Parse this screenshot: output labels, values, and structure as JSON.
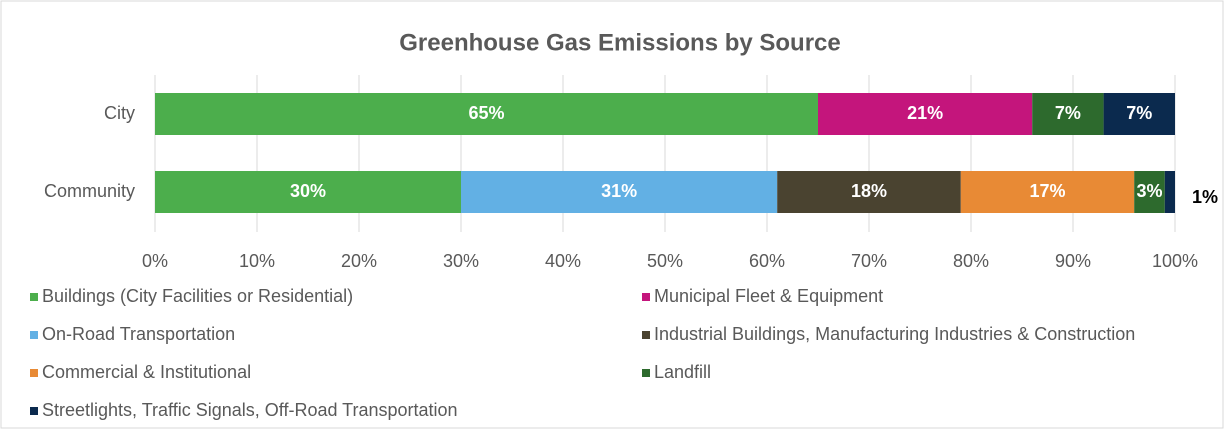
{
  "chart_data": {
    "type": "stacked-bar-horizontal",
    "title": "Greenhouse Gas Emissions by Source",
    "categories": [
      "City",
      "Community"
    ],
    "series": [
      {
        "name": "Buildings (City Facilities or Residential)",
        "color": "#4cae4c",
        "values": [
          65,
          30
        ],
        "value_labels": [
          "65%",
          "30%"
        ]
      },
      {
        "name": "Municipal Fleet & Equipment",
        "color": "#c4157c",
        "values": [
          21,
          null
        ],
        "value_labels": [
          "21%",
          null
        ]
      },
      {
        "name": "On-Road Transportation",
        "color": "#62b0e4",
        "values": [
          null,
          31
        ],
        "value_labels": [
          null,
          "31%"
        ]
      },
      {
        "name": "Industrial Buildings, Manufacturing Industries & Construction",
        "color": "#4a4330",
        "values": [
          null,
          18
        ],
        "value_labels": [
          null,
          "18%"
        ]
      },
      {
        "name": "Commercial & Institutional",
        "color": "#e88a35",
        "values": [
          null,
          17
        ],
        "value_labels": [
          null,
          "17%"
        ]
      },
      {
        "name": "Landfill",
        "color": "#2d6a2d",
        "values": [
          7,
          3
        ],
        "value_labels": [
          "7%",
          "3%"
        ]
      },
      {
        "name": "Streetlights, Traffic Signals, Off-Road Transportation",
        "color": "#0b2a4e",
        "values": [
          7,
          1
        ],
        "value_labels": [
          "7%",
          "1%"
        ]
      }
    ],
    "xlim": [
      0,
      100
    ],
    "xticks": [
      {
        "value": 0,
        "label": "0%"
      },
      {
        "value": 10,
        "label": "10%"
      },
      {
        "value": 20,
        "label": "20%"
      },
      {
        "value": 30,
        "label": "30%"
      },
      {
        "value": 40,
        "label": "40%"
      },
      {
        "value": 50,
        "label": "50%"
      },
      {
        "value": 60,
        "label": "60%"
      },
      {
        "value": 70,
        "label": "70%"
      },
      {
        "value": 80,
        "label": "80%"
      },
      {
        "value": 90,
        "label": "90%"
      },
      {
        "value": 100,
        "label": "100%"
      }
    ],
    "grid": true,
    "legend": "bottom"
  }
}
